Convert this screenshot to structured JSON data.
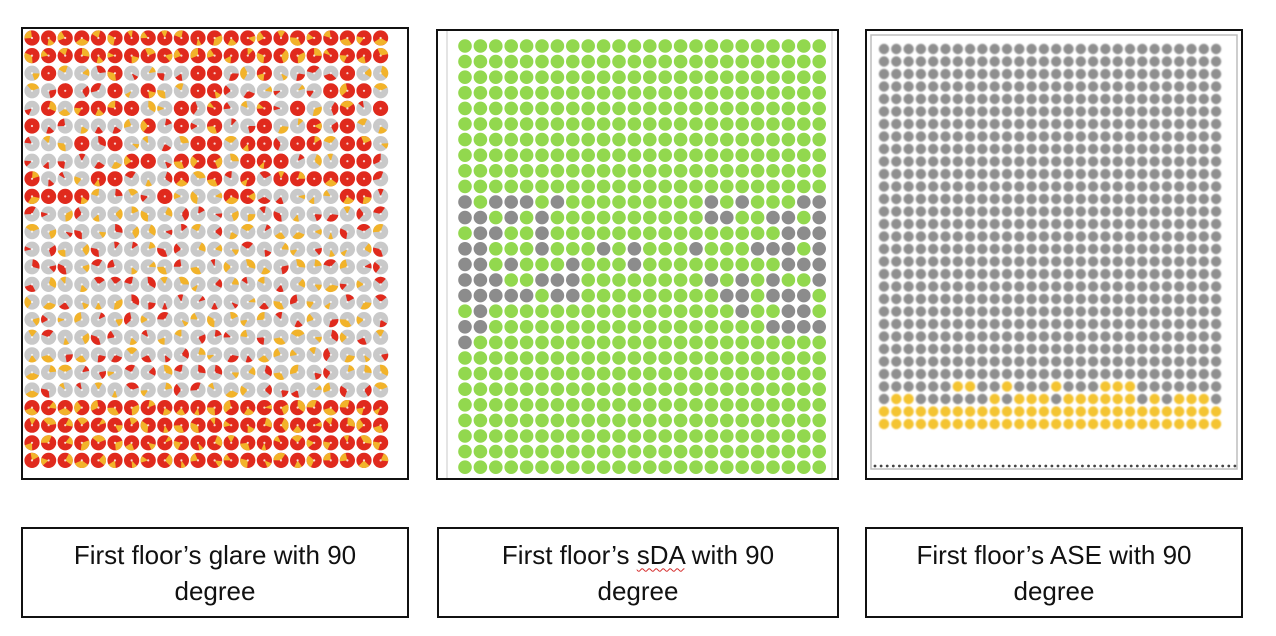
{
  "colors": {
    "glare_intolerable": "#e02a1d",
    "glare_disturbing": "#f2b32a",
    "glare_none": "#c9c9c9",
    "sda_pass": "#92d84e",
    "sda_fail": "#8c8c8c",
    "ase_low": "#8f8f8f",
    "ase_high": "#f4c430"
  },
  "panels": [
    {
      "id": "glare",
      "caption_line1_pre": "First floor’s glare with 90",
      "caption_line1_squiggle": "",
      "caption_line1_post": "",
      "caption_line2": "degree"
    },
    {
      "id": "sda",
      "caption_line1_pre": "First floor’s ",
      "caption_line1_squiggle": "sDA",
      "caption_line1_post": " with 90",
      "caption_line2": "degree"
    },
    {
      "id": "ase",
      "caption_line1_pre": "First floor’s ASE with 90",
      "caption_line1_squiggle": "",
      "caption_line1_post": "",
      "caption_line2": "degree"
    }
  ]
}
